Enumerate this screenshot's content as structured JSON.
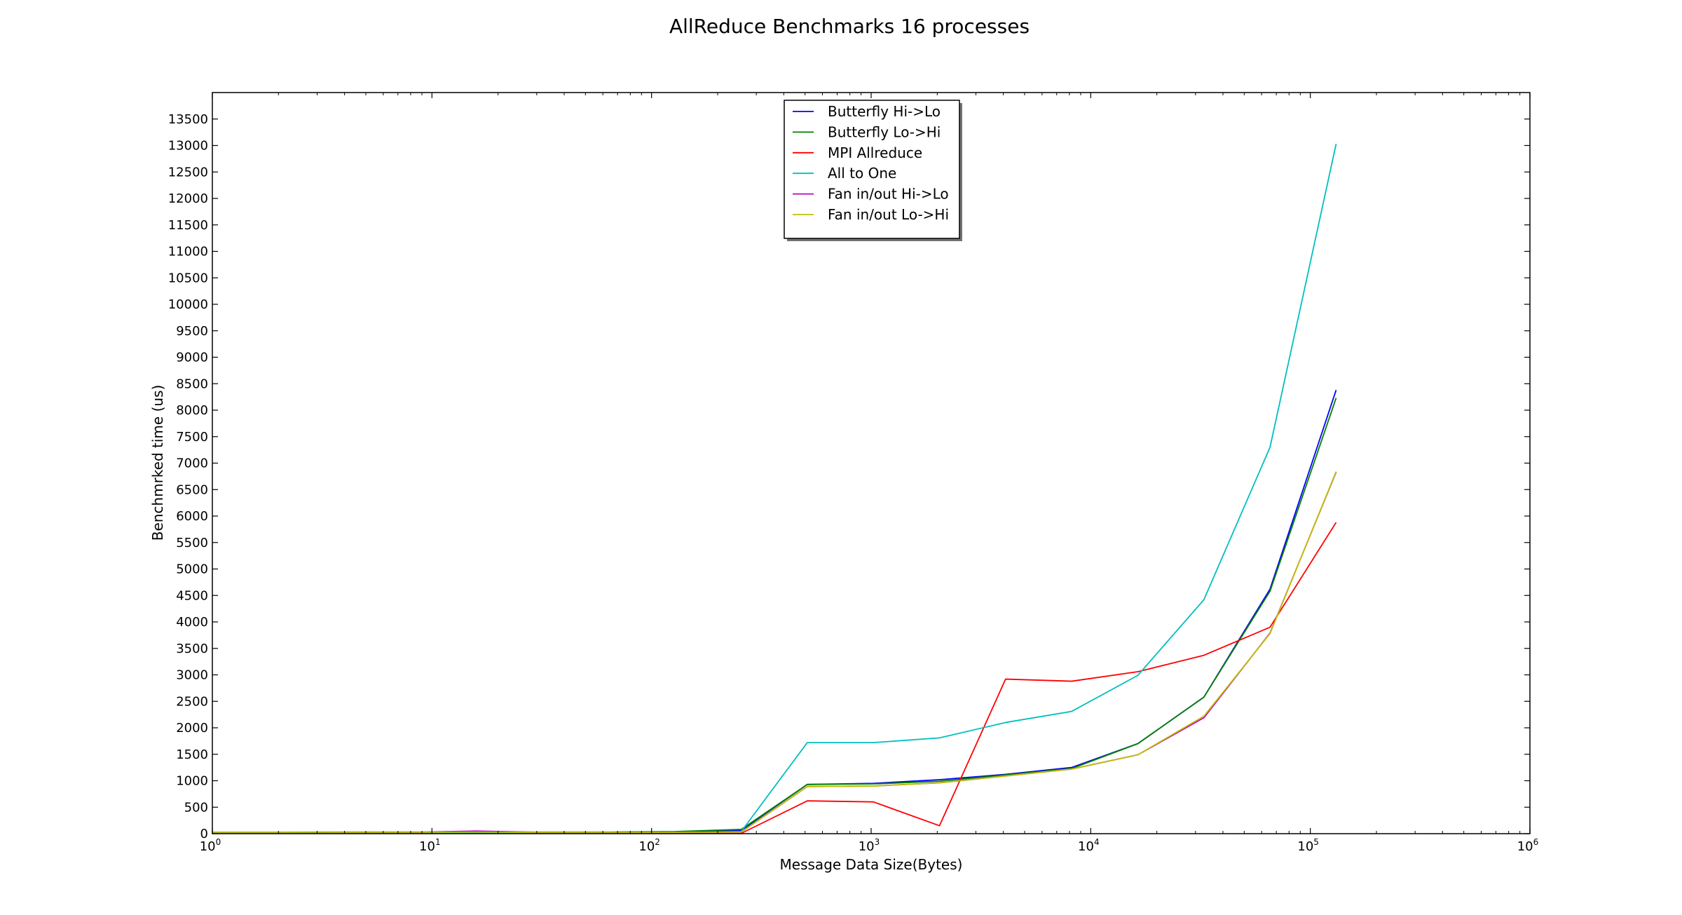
{
  "chart_data": {
    "type": "line",
    "title": "AllReduce Benchmarks 16 processes",
    "xlabel": "Message Data Size(Bytes)",
    "ylabel": "Benchmrked time (us)",
    "xscale": "log",
    "xlim": [
      1,
      1000000
    ],
    "ylim": [
      0,
      14000
    ],
    "x_ticks": [
      {
        "value": 1,
        "base": "10",
        "exp": "0"
      },
      {
        "value": 10,
        "base": "10",
        "exp": "1"
      },
      {
        "value": 100,
        "base": "10",
        "exp": "2"
      },
      {
        "value": 1000,
        "base": "10",
        "exp": "3"
      },
      {
        "value": 10000,
        "base": "10",
        "exp": "4"
      },
      {
        "value": 100000,
        "base": "10",
        "exp": "5"
      },
      {
        "value": 1000000,
        "base": "10",
        "exp": "6"
      }
    ],
    "y_ticks": [
      0,
      500,
      1000,
      1500,
      2000,
      2500,
      3000,
      3500,
      4000,
      4500,
      5000,
      5500,
      6000,
      6500,
      7000,
      7500,
      8000,
      8500,
      9000,
      9500,
      10000,
      10500,
      11000,
      11500,
      12000,
      12500,
      13000,
      13500
    ],
    "grid": false,
    "legend_position": "top-center",
    "x": [
      1,
      2,
      4,
      8,
      16,
      32,
      64,
      128,
      256,
      512,
      1024,
      2048,
      4096,
      8192,
      16384,
      32768,
      65536,
      131072
    ],
    "series": [
      {
        "name": "Butterfly Hi->Lo",
        "color": "#0000ff",
        "values": [
          20,
          20,
          25,
          25,
          30,
          25,
          25,
          30,
          60,
          930,
          950,
          1020,
          1120,
          1250,
          1700,
          2580,
          4620,
          8380
        ]
      },
      {
        "name": "Butterfly Lo->Hi",
        "color": "#008000",
        "values": [
          25,
          25,
          30,
          30,
          30,
          30,
          30,
          40,
          80,
          930,
          940,
          990,
          1110,
          1230,
          1700,
          2580,
          4580,
          8230
        ]
      },
      {
        "name": "MPI Allreduce",
        "color": "#ff0000",
        "values": [
          5,
          5,
          5,
          5,
          5,
          5,
          5,
          5,
          5,
          620,
          600,
          150,
          2920,
          2880,
          3060,
          3370,
          3900,
          5880
        ]
      },
      {
        "name": "All to One",
        "color": "#00bfbf",
        "values": [
          20,
          20,
          20,
          20,
          20,
          20,
          20,
          20,
          40,
          1720,
          1720,
          1810,
          2100,
          2310,
          2990,
          4420,
          7300,
          13030
        ]
      },
      {
        "name": "Fan in/out Hi->Lo",
        "color": "#bf00bf",
        "values": [
          20,
          20,
          25,
          25,
          50,
          25,
          25,
          25,
          30,
          890,
          900,
          960,
          1090,
          1220,
          1490,
          2190,
          3790,
          6830
        ]
      },
      {
        "name": "Fan in/out Lo->Hi",
        "color": "#bfbf00",
        "values": [
          20,
          20,
          25,
          25,
          30,
          25,
          25,
          25,
          30,
          890,
          900,
          960,
          1090,
          1220,
          1490,
          2220,
          3780,
          6840
        ]
      }
    ]
  }
}
